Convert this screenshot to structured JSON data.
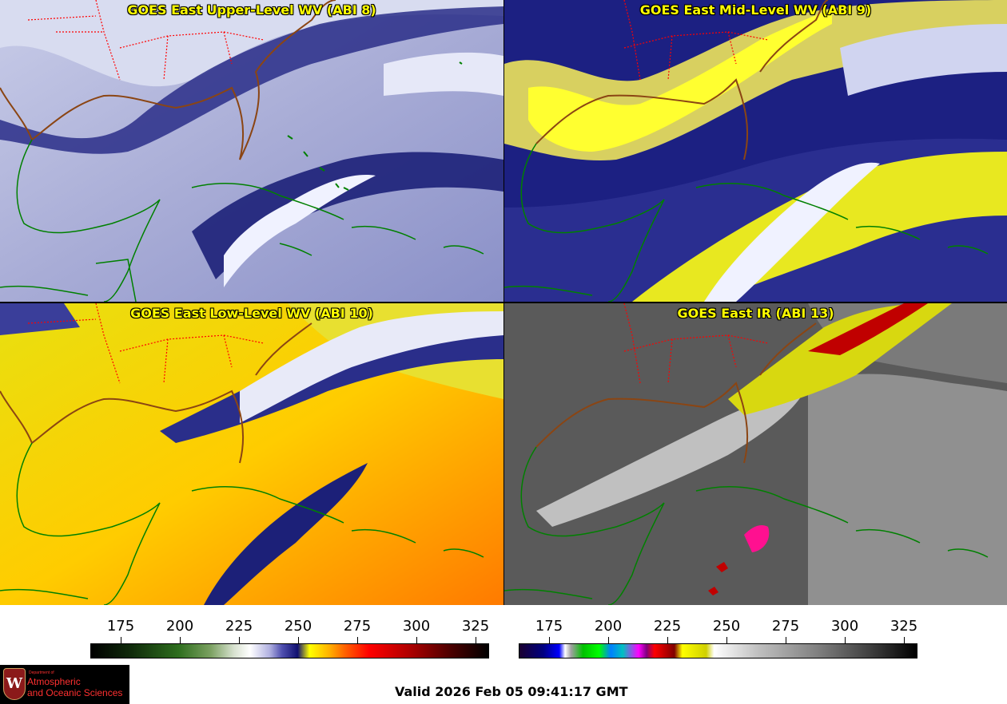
{
  "panels": [
    {
      "title": "GOES East Upper-Level WV (ABI 8)"
    },
    {
      "title": "GOES East Mid-Level WV (ABI 9)"
    },
    {
      "title": "GOES East Low-Level WV (ABI 10)"
    },
    {
      "title": "GOES East IR (ABI 13)"
    }
  ],
  "scales": [
    {
      "name": "wv",
      "ticks": [
        "175",
        "200",
        "225",
        "250",
        "275",
        "300",
        "325"
      ]
    },
    {
      "name": "ir",
      "ticks": [
        "175",
        "200",
        "225",
        "250",
        "275",
        "300",
        "325"
      ]
    }
  ],
  "logo": {
    "small_text": "Department of",
    "line1": "Atmospheric",
    "line2": "and Oceanic Sciences",
    "seal_letter": "W"
  },
  "footer": {
    "valid_text": "Valid 2026 Feb 05 09:41:17 GMT"
  },
  "colors": {
    "title": "#ffff00",
    "coast": "#008000",
    "state_border": "#ff0000",
    "us_coast": "#8b4513"
  }
}
